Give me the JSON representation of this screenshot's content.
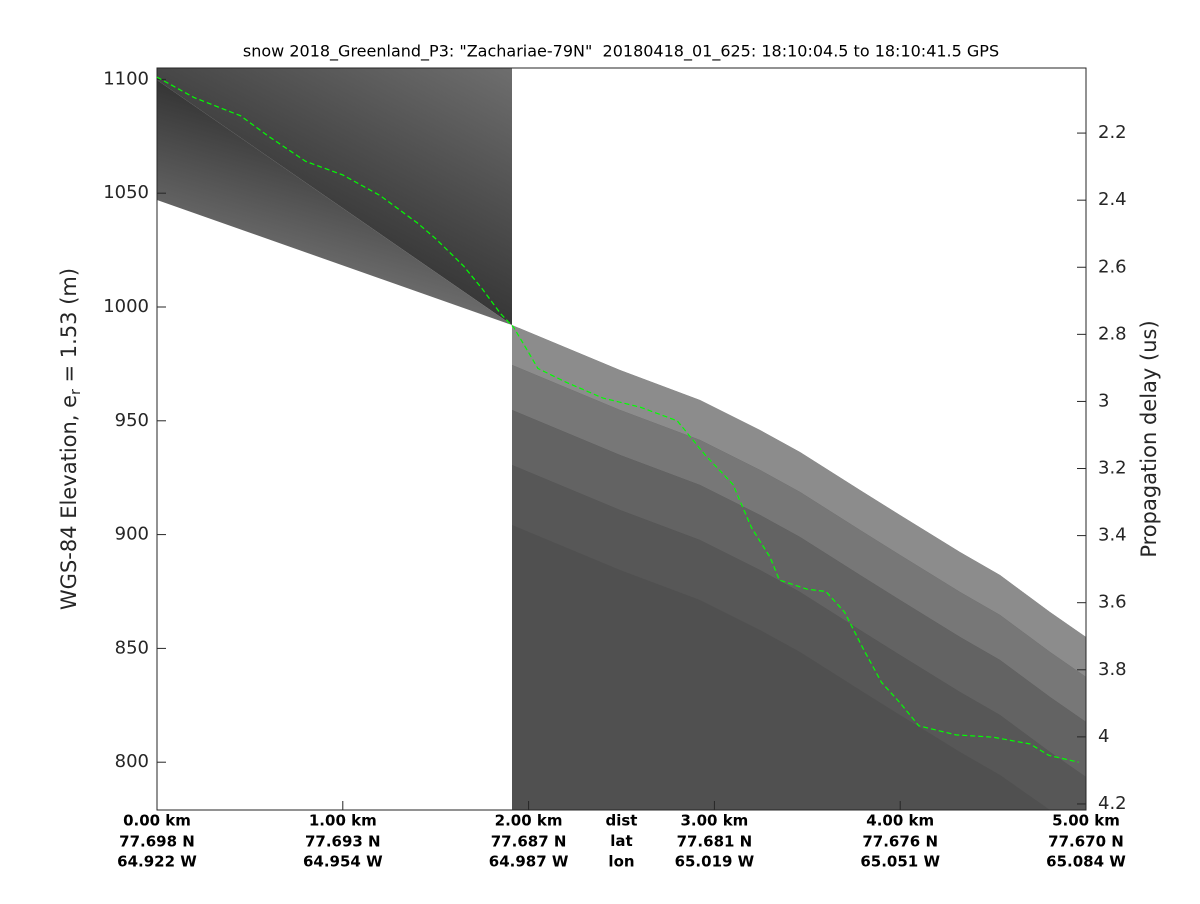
{
  "chart_data": {
    "type": "line",
    "title": "snow 2018_Greenland_P3: \"Zachariae-79N\"  20180418_01_625: 18:10:04.5 to 18:10:41.5 GPS",
    "ylabel": {
      "main": "WGS-84 Elevation, e",
      "sub": "r",
      "rest": " = 1.53 (m)"
    },
    "y2label": "Propagation delay (us)",
    "xlim": [
      0,
      5
    ],
    "xticks": [
      {
        "value": 0,
        "label": "0.00 km"
      },
      {
        "value": 1,
        "label": "1.00 km"
      },
      {
        "value": 2,
        "label": "2.00 km"
      },
      {
        "value": 3,
        "label": "3.00 km"
      },
      {
        "value": 4,
        "label": "4.00 km"
      },
      {
        "value": 5,
        "label": "5.00 km"
      }
    ],
    "x_tick_lat": [
      "77.698 N",
      "77.693 N",
      "77.687 N",
      "77.681 N",
      "77.676 N",
      "77.670 N"
    ],
    "x_tick_lon": [
      "64.922 W",
      "64.954 W",
      "64.987 W",
      "65.019 W",
      "65.051 W",
      "65.084 W"
    ],
    "row_labels": [
      "dist",
      "lat",
      "lon"
    ],
    "ylim": [
      779,
      1105
    ],
    "yticks": [
      800,
      850,
      900,
      950,
      1000,
      1050,
      1100
    ],
    "y2lim": [
      4.218,
      2.006
    ],
    "y2ticks": [
      2.2,
      2.4,
      2.6,
      2.8,
      3,
      3.2,
      3.4,
      3.6,
      3.8,
      4,
      4.2
    ],
    "series": [
      {
        "color": "#00ff00",
        "x": [
          0,
          0.2,
          0.45,
          0.6,
          0.8,
          1.0,
          1.2,
          1.4,
          1.5,
          1.65,
          1.75,
          1.85,
          1.92,
          2.0,
          2.05,
          2.2,
          2.4,
          2.6,
          2.8,
          2.95,
          3.1,
          3.2,
          3.3,
          3.35,
          3.5,
          3.6,
          3.7,
          3.8,
          3.9,
          4.0,
          4.1,
          4.3,
          4.5,
          4.7,
          4.8,
          4.96
        ],
        "values": [
          1101,
          1092,
          1084,
          1075,
          1064,
          1058,
          1049,
          1037,
          1030,
          1018,
          1008,
          997,
          991,
          980,
          973,
          967,
          960,
          956,
          950,
          935,
          922,
          903,
          890,
          880,
          876,
          875,
          866,
          850,
          835,
          826,
          816,
          812,
          811,
          808,
          803,
          800
        ]
      }
    ]
  }
}
